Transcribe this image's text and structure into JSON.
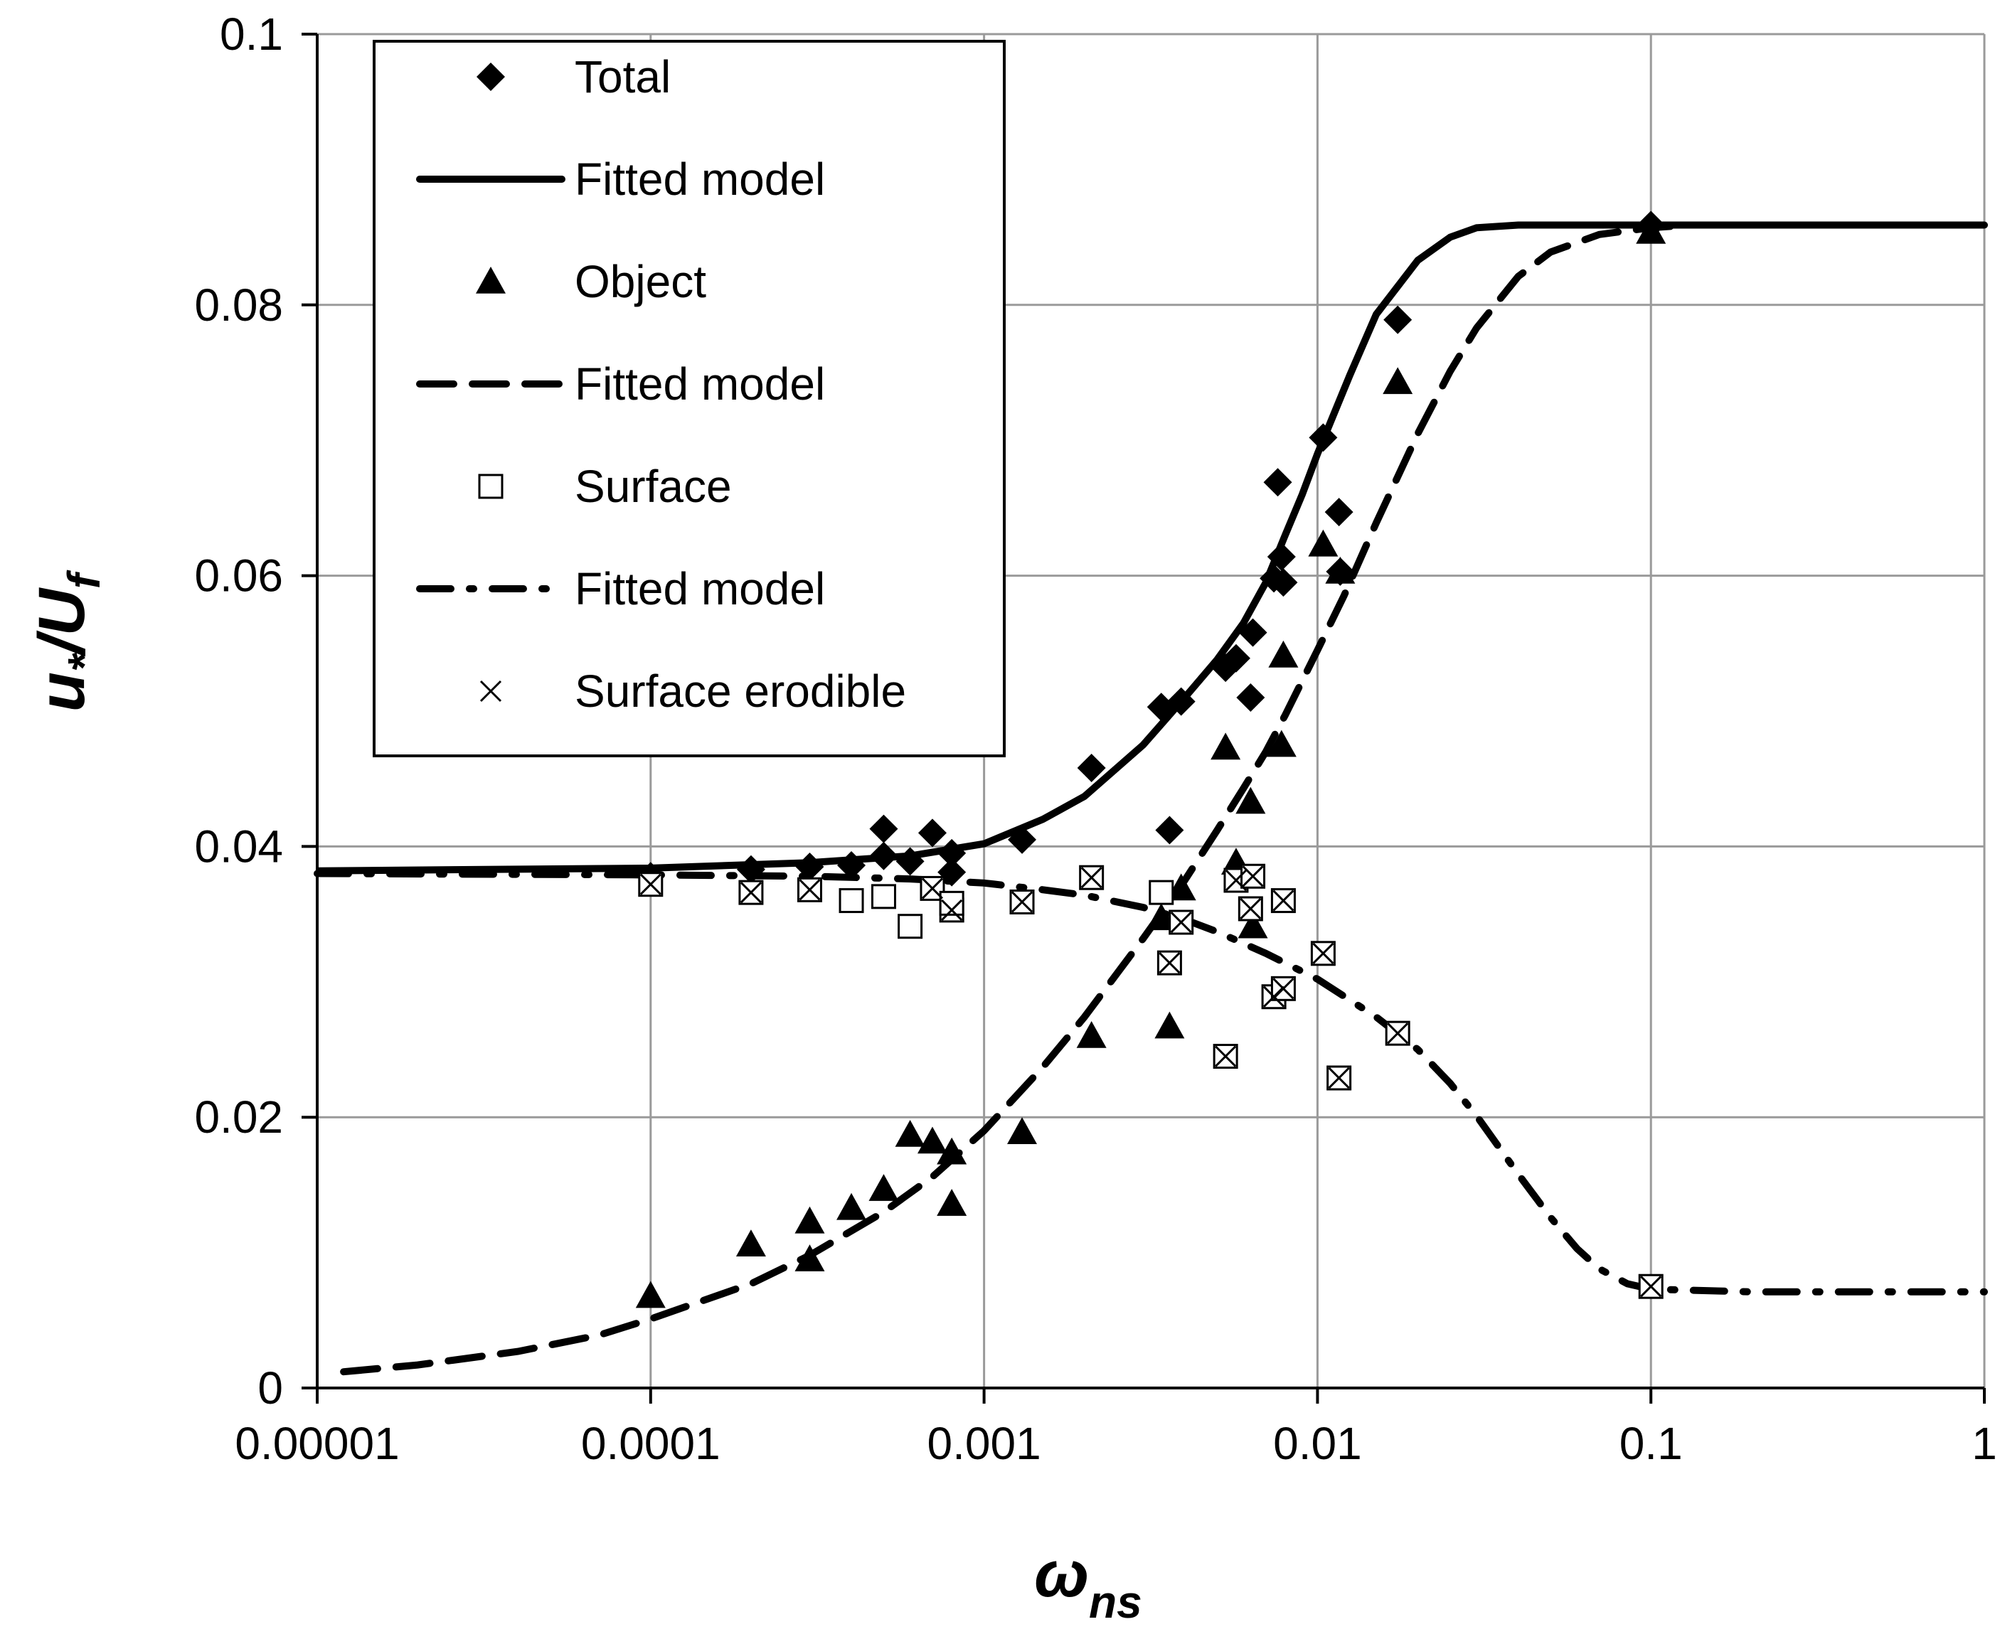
{
  "chart_data": {
    "type": "scatter",
    "xscale": "log",
    "xlim": [
      1e-05,
      1
    ],
    "ylim": [
      0,
      0.1
    ],
    "grid": true,
    "legend_position": "top-left",
    "x_ticks": [
      "0.00001",
      "0.0001",
      "0.001",
      "0.01",
      "0.1",
      "1"
    ],
    "y_ticks": [
      "0",
      "0.02",
      "0.04",
      "0.06",
      "0.08",
      "0.1"
    ],
    "ylabel": {
      "main": "u",
      "sub1": "*",
      "mid": "/U",
      "sub2": "f"
    },
    "xlabel": {
      "main": "ω",
      "sub": "ns"
    },
    "legend": [
      {
        "label": "Total",
        "marker": "diamond"
      },
      {
        "label": "Fitted model",
        "line": "solid"
      },
      {
        "label": "Object",
        "marker": "triangle"
      },
      {
        "label": "Fitted model",
        "line": "dash"
      },
      {
        "label": "Surface",
        "marker": "square"
      },
      {
        "label": "Fitted model",
        "line": "dashdot"
      },
      {
        "label": "Surface erodible",
        "marker": "x"
      }
    ],
    "series": [
      {
        "name": "Total",
        "marker": "diamond",
        "points": [
          [
            0.0001,
            0.0378
          ],
          [
            0.0002,
            0.0383
          ],
          [
            0.0003,
            0.0385
          ],
          [
            0.0004,
            0.0386
          ],
          [
            0.0005,
            0.0393
          ],
          [
            0.0005,
            0.0413
          ],
          [
            0.0006,
            0.0389
          ],
          [
            0.0007,
            0.041
          ],
          [
            0.0008,
            0.0395
          ],
          [
            0.0008,
            0.0381
          ],
          [
            0.0013,
            0.0405
          ],
          [
            0.0021,
            0.0458
          ],
          [
            0.0034,
            0.0503
          ],
          [
            0.0036,
            0.0412
          ],
          [
            0.0039,
            0.0507
          ],
          [
            0.0053,
            0.0532
          ],
          [
            0.0057,
            0.0539
          ],
          [
            0.0063,
            0.051
          ],
          [
            0.0064,
            0.0558
          ],
          [
            0.0074,
            0.0598
          ],
          [
            0.0076,
            0.0669
          ],
          [
            0.0078,
            0.0614
          ],
          [
            0.0079,
            0.0595
          ],
          [
            0.0104,
            0.0702
          ],
          [
            0.0116,
            0.0647
          ],
          [
            0.0117,
            0.0603
          ],
          [
            0.0174,
            0.0789
          ],
          [
            0.1,
            0.0859
          ]
        ]
      },
      {
        "name": "Object",
        "marker": "triangle",
        "points": [
          [
            0.0001,
            0.0068
          ],
          [
            0.0002,
            0.0106
          ],
          [
            0.0003,
            0.0095
          ],
          [
            0.0003,
            0.0123
          ],
          [
            0.0004,
            0.0133
          ],
          [
            0.0005,
            0.0147
          ],
          [
            0.0006,
            0.0187
          ],
          [
            0.0007,
            0.0182
          ],
          [
            0.0008,
            0.0174
          ],
          [
            0.0008,
            0.0136
          ],
          [
            0.0013,
            0.0189
          ],
          [
            0.0021,
            0.026
          ],
          [
            0.0034,
            0.0347
          ],
          [
            0.0036,
            0.0267
          ],
          [
            0.0039,
            0.0369
          ],
          [
            0.0053,
            0.0473
          ],
          [
            0.0057,
            0.0388
          ],
          [
            0.0063,
            0.0433
          ],
          [
            0.0064,
            0.0341
          ],
          [
            0.0078,
            0.0475
          ],
          [
            0.0079,
            0.0541
          ],
          [
            0.0104,
            0.0623
          ],
          [
            0.0117,
            0.0603
          ],
          [
            0.0174,
            0.0743
          ],
          [
            0.1,
            0.0854
          ]
        ]
      },
      {
        "name": "Surface",
        "marker": "square",
        "points": [
          [
            0.0001,
            0.0372
          ],
          [
            0.0002,
            0.0366
          ],
          [
            0.0003,
            0.0368
          ],
          [
            0.0004,
            0.036
          ],
          [
            0.0005,
            0.0363
          ],
          [
            0.0006,
            0.0341
          ],
          [
            0.0007,
            0.0369
          ],
          [
            0.0008,
            0.0353
          ],
          [
            0.0008,
            0.0358
          ],
          [
            0.0013,
            0.0359
          ],
          [
            0.0021,
            0.0377
          ],
          [
            0.0034,
            0.0366
          ],
          [
            0.0036,
            0.0314
          ],
          [
            0.0039,
            0.0344
          ],
          [
            0.0053,
            0.0245
          ],
          [
            0.0057,
            0.0375
          ],
          [
            0.0063,
            0.0354
          ],
          [
            0.0064,
            0.0378
          ],
          [
            0.0074,
            0.0289
          ],
          [
            0.0079,
            0.0295
          ],
          [
            0.0079,
            0.036
          ],
          [
            0.0104,
            0.0321
          ],
          [
            0.0116,
            0.0229
          ],
          [
            0.0174,
            0.0262
          ],
          [
            0.1,
            0.0075
          ]
        ]
      },
      {
        "name": "Surface erodible",
        "marker": "x",
        "points": [
          [
            0.0001,
            0.0372
          ],
          [
            0.0002,
            0.0366
          ],
          [
            0.0003,
            0.0368
          ],
          [
            0.0007,
            0.0369
          ],
          [
            0.0008,
            0.0353
          ],
          [
            0.0013,
            0.0359
          ],
          [
            0.0021,
            0.0377
          ],
          [
            0.0036,
            0.0314
          ],
          [
            0.0039,
            0.0344
          ],
          [
            0.0053,
            0.0245
          ],
          [
            0.0057,
            0.0375
          ],
          [
            0.0063,
            0.0354
          ],
          [
            0.0064,
            0.0378
          ],
          [
            0.0074,
            0.0289
          ],
          [
            0.0079,
            0.0295
          ],
          [
            0.0079,
            0.036
          ],
          [
            0.0104,
            0.0321
          ],
          [
            0.0116,
            0.0229
          ],
          [
            0.0174,
            0.0262
          ],
          [
            0.1,
            0.0075
          ]
        ]
      }
    ],
    "models": [
      {
        "name": "Fitted model",
        "fits": "Total",
        "line": "solid",
        "points": [
          [
            1e-05,
            0.0382
          ],
          [
            0.0001,
            0.0384
          ],
          [
            0.0003,
            0.0388
          ],
          [
            0.0006,
            0.0393
          ],
          [
            0.001,
            0.0402
          ],
          [
            0.0015,
            0.042
          ],
          [
            0.002,
            0.0437
          ],
          [
            0.003,
            0.0475
          ],
          [
            0.004,
            0.051
          ],
          [
            0.005,
            0.0538
          ],
          [
            0.006,
            0.0565
          ],
          [
            0.007,
            0.0595
          ],
          [
            0.008,
            0.063
          ],
          [
            0.009,
            0.066
          ],
          [
            0.01,
            0.069
          ],
          [
            0.0125,
            0.0748
          ],
          [
            0.015,
            0.0793
          ],
          [
            0.02,
            0.0833
          ],
          [
            0.025,
            0.085
          ],
          [
            0.03,
            0.0857
          ],
          [
            0.04,
            0.0859
          ],
          [
            0.1,
            0.0859
          ],
          [
            1,
            0.0859
          ]
        ]
      },
      {
        "name": "Fitted model",
        "fits": "Object",
        "line": "dash",
        "points": [
          [
            1.2e-05,
            0.0012
          ],
          [
            2e-05,
            0.0017
          ],
          [
            4e-05,
            0.0027
          ],
          [
            7e-05,
            0.0039
          ],
          [
            0.0001,
            0.0051
          ],
          [
            0.0002,
            0.0077
          ],
          [
            0.0003,
            0.0098
          ],
          [
            0.0005,
            0.013
          ],
          [
            0.0007,
            0.0156
          ],
          [
            0.001,
            0.019
          ],
          [
            0.0015,
            0.0237
          ],
          [
            0.002,
            0.0274
          ],
          [
            0.003,
            0.0332
          ],
          [
            0.004,
            0.0375
          ],
          [
            0.005,
            0.0412
          ],
          [
            0.006,
            0.0443
          ],
          [
            0.007,
            0.047
          ],
          [
            0.008,
            0.0497
          ],
          [
            0.01,
            0.0545
          ],
          [
            0.012,
            0.0585
          ],
          [
            0.015,
            0.0639
          ],
          [
            0.02,
            0.0705
          ],
          [
            0.025,
            0.0751
          ],
          [
            0.03,
            0.0783
          ],
          [
            0.04,
            0.0821
          ],
          [
            0.05,
            0.0839
          ],
          [
            0.07,
            0.0852
          ],
          [
            0.1,
            0.0857
          ],
          [
            0.13,
            0.0859
          ],
          [
            1,
            0.0859
          ]
        ]
      },
      {
        "name": "Fitted model",
        "fits": "Surface",
        "line": "dashdot",
        "points": [
          [
            1e-05,
            0.038
          ],
          [
            0.0001,
            0.0379
          ],
          [
            0.0003,
            0.0378
          ],
          [
            0.0006,
            0.0376
          ],
          [
            0.001,
            0.0373
          ],
          [
            0.0015,
            0.0368
          ],
          [
            0.002,
            0.0364
          ],
          [
            0.003,
            0.0355
          ],
          [
            0.004,
            0.0346
          ],
          [
            0.005,
            0.0337
          ],
          [
            0.007,
            0.0321
          ],
          [
            0.01,
            0.0302
          ],
          [
            0.015,
            0.0274
          ],
          [
            0.02,
            0.025
          ],
          [
            0.025,
            0.0225
          ],
          [
            0.03,
            0.0201
          ],
          [
            0.04,
            0.0158
          ],
          [
            0.05,
            0.0126
          ],
          [
            0.06,
            0.0103
          ],
          [
            0.07,
            0.0088
          ],
          [
            0.085,
            0.0077
          ],
          [
            0.1,
            0.0073
          ],
          [
            0.2,
            0.0071
          ],
          [
            1,
            0.0071
          ]
        ]
      }
    ]
  }
}
